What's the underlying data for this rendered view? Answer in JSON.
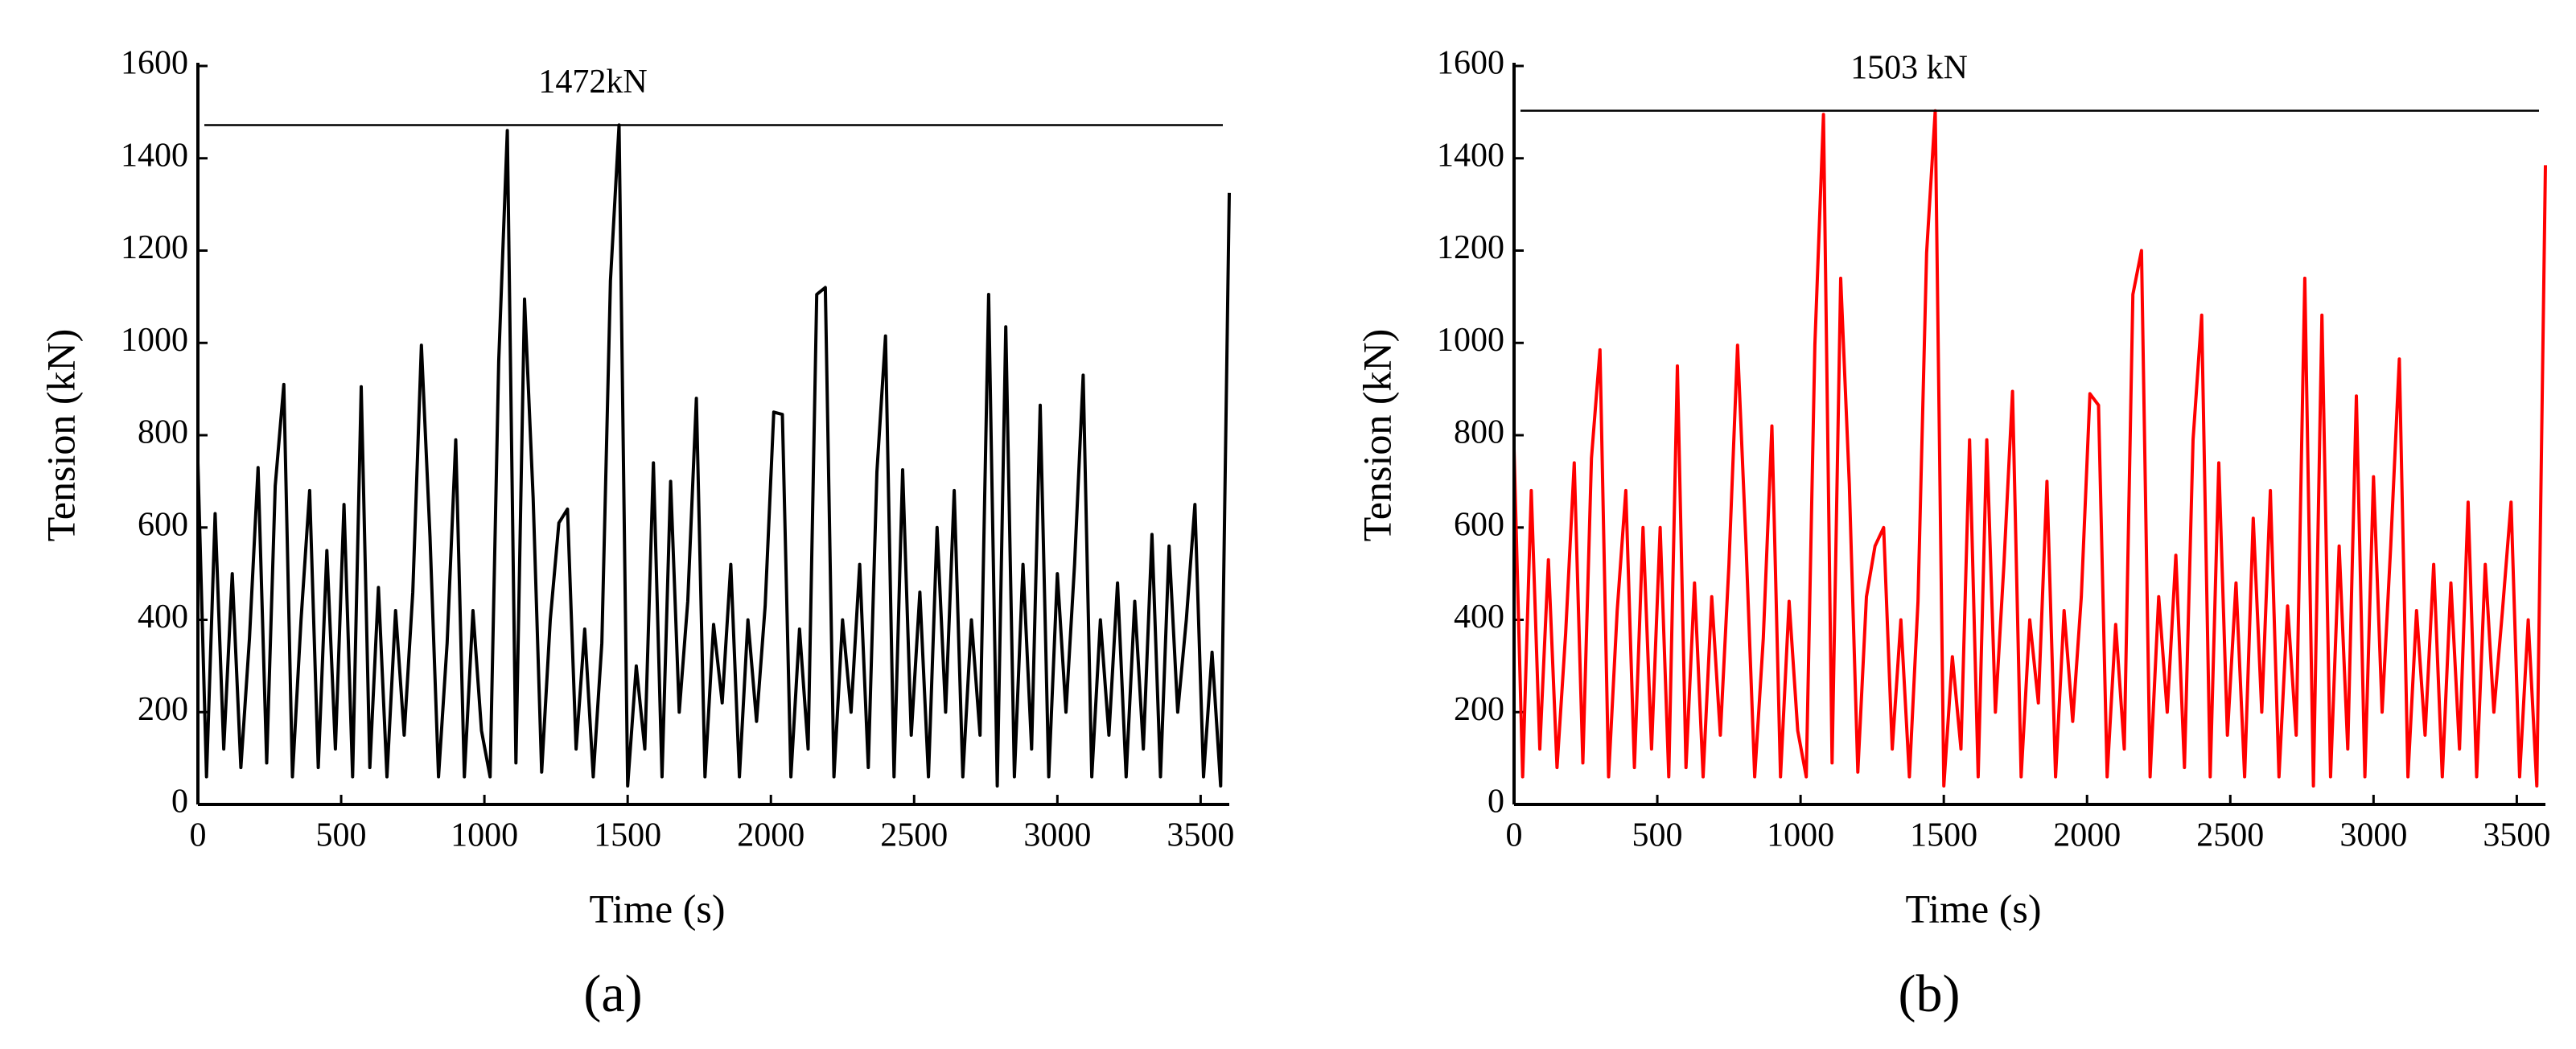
{
  "chart_data": [
    {
      "type": "line",
      "panel_label": "(a)",
      "x_label": "Time (s)",
      "y_label": "Tension (kN)",
      "hline": 1472,
      "hline_label": "1472kN",
      "xlim": [
        0,
        3600
      ],
      "xticks": [
        0,
        500,
        1000,
        1500,
        2000,
        2500,
        3000,
        3500
      ],
      "ylim": [
        0,
        1600
      ],
      "yticks": [
        0,
        200,
        400,
        600,
        800,
        1000,
        1200,
        1400,
        1600
      ],
      "x": [
        0,
        30,
        60,
        90,
        120,
        150,
        180,
        210,
        240,
        270,
        300,
        330,
        360,
        390,
        420,
        450,
        480,
        510,
        540,
        570,
        600,
        630,
        660,
        690,
        720,
        750,
        780,
        810,
        840,
        870,
        900,
        930,
        960,
        990,
        1020,
        1050,
        1080,
        1110,
        1140,
        1170,
        1200,
        1230,
        1260,
        1290,
        1320,
        1350,
        1380,
        1410,
        1440,
        1470,
        1500,
        1530,
        1560,
        1590,
        1620,
        1650,
        1680,
        1710,
        1740,
        1770,
        1800,
        1830,
        1860,
        1890,
        1920,
        1950,
        1980,
        2010,
        2040,
        2070,
        2100,
        2130,
        2160,
        2190,
        2220,
        2250,
        2280,
        2310,
        2340,
        2370,
        2400,
        2430,
        2460,
        2490,
        2520,
        2550,
        2580,
        2610,
        2640,
        2670,
        2700,
        2730,
        2760,
        2790,
        2820,
        2850,
        2880,
        2910,
        2940,
        2970,
        3000,
        3030,
        3060,
        3090,
        3120,
        3150,
        3180,
        3210,
        3240,
        3270,
        3300,
        3330,
        3360,
        3390,
        3420,
        3450,
        3480,
        3510,
        3540,
        3570,
        3600
      ],
      "series": [
        {
          "color": "#000000",
          "values": [
            740,
            60,
            630,
            120,
            500,
            80,
            360,
            730,
            90,
            690,
            910,
            60,
            400,
            680,
            80,
            550,
            120,
            650,
            60,
            905,
            80,
            470,
            60,
            420,
            150,
            460,
            995,
            580,
            60,
            350,
            790,
            60,
            420,
            160,
            60,
            960,
            1460,
            90,
            1095,
            665,
            70,
            400,
            610,
            640,
            120,
            380,
            60,
            350,
            1135,
            1472,
            40,
            300,
            120,
            740,
            60,
            700,
            200,
            440,
            880,
            60,
            390,
            220,
            520,
            60,
            400,
            180,
            430,
            850,
            845,
            60,
            380,
            120,
            1105,
            1120,
            60,
            400,
            200,
            520,
            80,
            720,
            1015,
            60,
            725,
            150,
            460,
            60,
            600,
            200,
            680,
            60,
            400,
            150,
            1105,
            40,
            1035,
            60,
            520,
            120,
            865,
            60,
            500,
            200,
            520,
            930,
            60,
            400,
            150,
            480,
            60,
            440,
            120,
            585,
            60,
            560,
            200,
            400,
            650,
            60,
            330,
            40,
            1325
          ]
        }
      ]
    },
    {
      "type": "line",
      "panel_label": "(b)",
      "x_label": "Time (s)",
      "y_label": "Tension (kN)",
      "hline": 1503,
      "hline_label": "1503 kN",
      "xlim": [
        0,
        3600
      ],
      "xticks": [
        0,
        500,
        1000,
        1500,
        2000,
        2500,
        3000,
        3500
      ],
      "ylim": [
        0,
        1600
      ],
      "yticks": [
        0,
        200,
        400,
        600,
        800,
        1000,
        1200,
        1400,
        1600
      ],
      "x": [
        0,
        30,
        60,
        90,
        120,
        150,
        180,
        210,
        240,
        270,
        300,
        330,
        360,
        390,
        420,
        450,
        480,
        510,
        540,
        570,
        600,
        630,
        660,
        690,
        720,
        750,
        780,
        810,
        840,
        870,
        900,
        930,
        960,
        990,
        1020,
        1050,
        1080,
        1110,
        1140,
        1170,
        1200,
        1230,
        1260,
        1290,
        1320,
        1350,
        1380,
        1410,
        1440,
        1470,
        1500,
        1530,
        1560,
        1590,
        1620,
        1650,
        1680,
        1710,
        1740,
        1770,
        1800,
        1830,
        1860,
        1890,
        1920,
        1950,
        1980,
        2010,
        2040,
        2070,
        2100,
        2130,
        2160,
        2190,
        2220,
        2250,
        2280,
        2310,
        2340,
        2370,
        2400,
        2430,
        2460,
        2490,
        2520,
        2550,
        2580,
        2610,
        2640,
        2670,
        2700,
        2730,
        2760,
        2790,
        2820,
        2850,
        2880,
        2910,
        2940,
        2970,
        3000,
        3030,
        3060,
        3090,
        3120,
        3150,
        3180,
        3210,
        3240,
        3270,
        3300,
        3330,
        3360,
        3390,
        3420,
        3450,
        3480,
        3510,
        3540,
        3570,
        3600
      ],
      "series": [
        {
          "color": "#ff0000",
          "values": [
            770,
            60,
            680,
            120,
            530,
            80,
            370,
            740,
            90,
            750,
            985,
            60,
            420,
            680,
            80,
            600,
            120,
            600,
            60,
            950,
            80,
            480,
            60,
            450,
            150,
            520,
            995,
            560,
            60,
            360,
            820,
            60,
            440,
            160,
            60,
            995,
            1495,
            90,
            1140,
            695,
            70,
            450,
            560,
            600,
            120,
            400,
            60,
            440,
            1195,
            1503,
            40,
            320,
            120,
            790,
            60,
            790,
            200,
            520,
            895,
            60,
            400,
            220,
            700,
            60,
            420,
            180,
            450,
            890,
            865,
            60,
            390,
            120,
            1105,
            1200,
            60,
            450,
            200,
            540,
            80,
            790,
            1060,
            60,
            740,
            150,
            480,
            60,
            620,
            200,
            680,
            60,
            430,
            150,
            1140,
            40,
            1060,
            60,
            560,
            120,
            885,
            60,
            710,
            200,
            560,
            965,
            60,
            420,
            150,
            520,
            60,
            480,
            120,
            655,
            60,
            520,
            200,
            420,
            655,
            60,
            400,
            40,
            1385
          ]
        }
      ]
    }
  ]
}
